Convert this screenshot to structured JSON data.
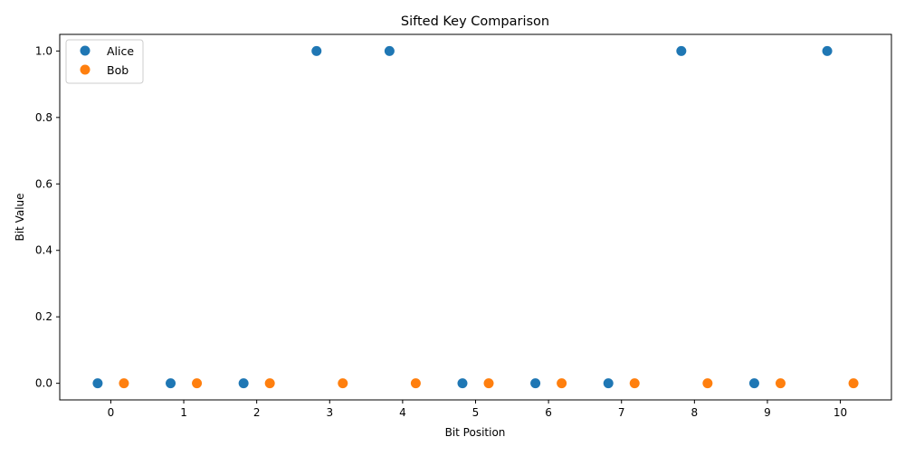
{
  "chart_data": {
    "type": "scatter",
    "title": "Sifted Key Comparison",
    "xlabel": "Bit Position",
    "ylabel": "Bit Value",
    "xlim": [
      -0.7,
      10.7
    ],
    "ylim": [
      -0.05,
      1.05
    ],
    "xticks": [
      0,
      1,
      2,
      3,
      4,
      5,
      6,
      7,
      8,
      9,
      10
    ],
    "xtick_labels": [
      "0",
      "1",
      "2",
      "3",
      "4",
      "5",
      "6",
      "7",
      "8",
      "9",
      "10"
    ],
    "yticks": [
      0.0,
      0.2,
      0.4,
      0.6,
      0.8,
      1.0
    ],
    "ytick_labels": [
      "0.0",
      "0.2",
      "0.4",
      "0.6",
      "0.8",
      "1.0"
    ],
    "grid": false,
    "legend_position": "top-left",
    "series": [
      {
        "name": "Alice",
        "color": "#1f77b4",
        "x": [
          -0.18,
          0.82,
          1.82,
          2.82,
          3.82,
          4.82,
          5.82,
          6.82,
          7.82,
          8.82,
          9.82
        ],
        "y": [
          0,
          0,
          0,
          1,
          1,
          0,
          0,
          0,
          1,
          0,
          1
        ]
      },
      {
        "name": "Bob",
        "color": "#ff7f0e",
        "x": [
          0.18,
          1.18,
          2.18,
          3.18,
          4.18,
          5.18,
          6.18,
          7.18,
          8.18,
          9.18,
          10.18
        ],
        "y": [
          0,
          0,
          0,
          0,
          0,
          0,
          0,
          0,
          0,
          0,
          0
        ]
      }
    ]
  }
}
